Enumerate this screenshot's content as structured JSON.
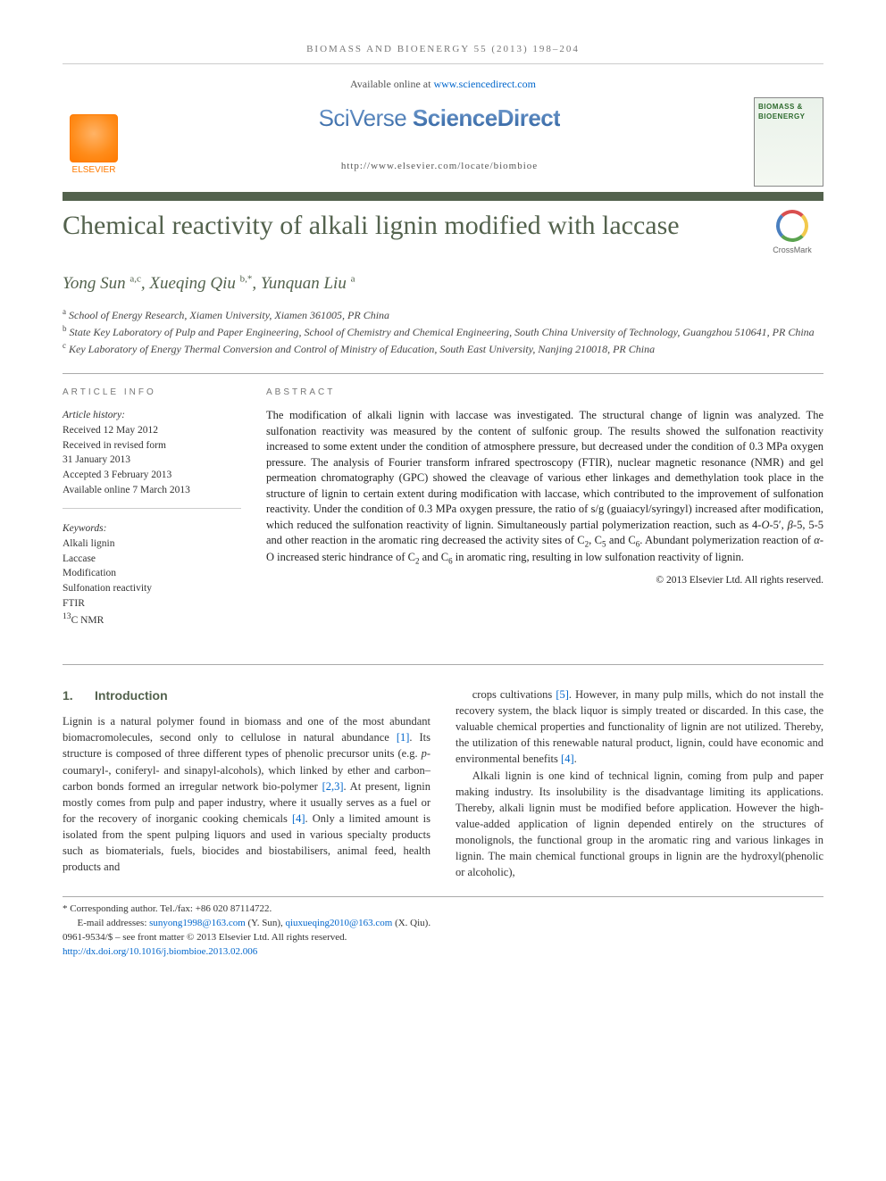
{
  "colors": {
    "accent": "#53624d",
    "link": "#0066cc",
    "muted": "#777777",
    "text": "#333333",
    "elsevier_orange": "#ff7a00"
  },
  "fonts": {
    "serif": "Georgia, 'Times New Roman', serif",
    "title": "'Palatino Linotype', Palatino, Georgia, serif",
    "sans": "Arial, sans-serif",
    "title_size_pt": 30,
    "author_size_pt": 19,
    "body_size_pt": 12.5
  },
  "header": {
    "citation": "BIOMASS AND BIOENERGY 55 (2013) 198–204",
    "available_prefix": "Available online at ",
    "available_url_text": "www.sciencedirect.com",
    "brand_sciverse": "SciVerse",
    "brand_sd": "ScienceDirect",
    "elsevier_label": "ELSEVIER",
    "locate_url": "http://www.elsevier.com/locate/biombioe",
    "journal_cover_title": "BIOMASS & BIOENERGY"
  },
  "title": "Chemical reactivity of alkali lignin modified with laccase",
  "crossmark_label": "CrossMark",
  "authors_html": "Yong Sun <sup>a,c</sup>, Xueqing Qiu <sup>b,*</sup>, Yunquan Liu <sup>a</sup>",
  "affiliations": [
    {
      "sup": "a",
      "text": "School of Energy Research, Xiamen University, Xiamen 361005, PR China"
    },
    {
      "sup": "b",
      "text": "State Key Laboratory of Pulp and Paper Engineering, School of Chemistry and Chemical Engineering, South China University of Technology, Guangzhou 510641, PR China"
    },
    {
      "sup": "c",
      "text": "Key Laboratory of Energy Thermal Conversion and Control of Ministry of Education, South East University, Nanjing 210018, PR China"
    }
  ],
  "article_info": {
    "heading": "ARTICLE INFO",
    "history_label": "Article history:",
    "history": [
      "Received 12 May 2012",
      "Received in revised form",
      "31 January 2013",
      "Accepted 3 February 2013",
      "Available online 7 March 2013"
    ],
    "keywords_label": "Keywords:",
    "keywords": [
      "Alkali lignin",
      "Laccase",
      "Modification",
      "Sulfonation reactivity",
      "FTIR",
      "13C NMR"
    ]
  },
  "abstract": {
    "heading": "ABSTRACT",
    "text": "The modification of alkali lignin with laccase was investigated. The structural change of lignin was analyzed. The sulfonation reactivity was measured by the content of sulfonic group. The results showed the sulfonation reactivity increased to some extent under the condition of atmosphere pressure, but decreased under the condition of 0.3 MPa oxygen pressure. The analysis of Fourier transform infrared spectroscopy (FTIR), nuclear magnetic resonance (NMR) and gel permeation chromatography (GPC) showed the cleavage of various ether linkages and demethylation took place in the structure of lignin to certain extent during modification with laccase, which contributed to the improvement of sulfonation reactivity. Under the condition of 0.3 MPa oxygen pressure, the ratio of s/g (guaiacyl/syringyl) increased after modification, which reduced the sulfonation reactivity of lignin. Simultaneously partial polymerization reaction, such as 4-O-5′, β-5, 5-5 and other reaction in the aromatic ring decreased the activity sites of C2, C5 and C6. Abundant polymerization reaction of α-O increased steric hindrance of C2 and C6 in aromatic ring, resulting in low sulfonation reactivity of lignin.",
    "copyright": "© 2013 Elsevier Ltd. All rights reserved."
  },
  "body": {
    "section_number": "1.",
    "section_title": "Introduction",
    "para1": "Lignin is a natural polymer found in biomass and one of the most abundant biomacromolecules, second only to cellulose in natural abundance [1]. Its structure is composed of three different types of phenolic precursor units (e.g. p-coumaryl-, coniferyl- and sinapyl-alcohols), which linked by ether and carbon–carbon bonds formed an irregular network bio-polymer [2,3]. At present, lignin mostly comes from pulp and paper industry, where it usually serves as a fuel or for the recovery of inorganic cooking chemicals [4]. Only a limited amount is isolated from the spent pulping liquors and used in various specialty products such as biomaterials, fuels, biocides and biostabilisers, animal feed, health products and",
    "para2": "crops cultivations [5]. However, in many pulp mills, which do not install the recovery system, the black liquor is simply treated or discarded. In this case, the valuable chemical properties and functionality of lignin are not utilized. Thereby, the utilization of this renewable natural product, lignin, could have economic and environmental benefits [4].",
    "para3": "Alkali lignin is one kind of technical lignin, coming from pulp and paper making industry. Its insolubility is the disadvantage limiting its applications. Thereby, alkali lignin must be modified before application. However the high-value-added application of lignin depended entirely on the structures of monolignols, the functional group in the aromatic ring and various linkages in lignin. The main chemical functional groups in lignin are the hydroxyl(phenolic or alcoholic),"
  },
  "footer": {
    "corresponding": "* Corresponding author. Tel./fax: +86 020 87114722.",
    "emails_label": "E-mail addresses: ",
    "email1": "sunyong1998@163.com",
    "email1_who": " (Y. Sun), ",
    "email2": "qiuxueqing2010@163.com",
    "email2_who": " (X. Qiu).",
    "issn_line": "0961-9534/$ – see front matter © 2013 Elsevier Ltd. All rights reserved.",
    "doi_label": "",
    "doi": "http://dx.doi.org/10.1016/j.biombioe.2013.02.006"
  }
}
